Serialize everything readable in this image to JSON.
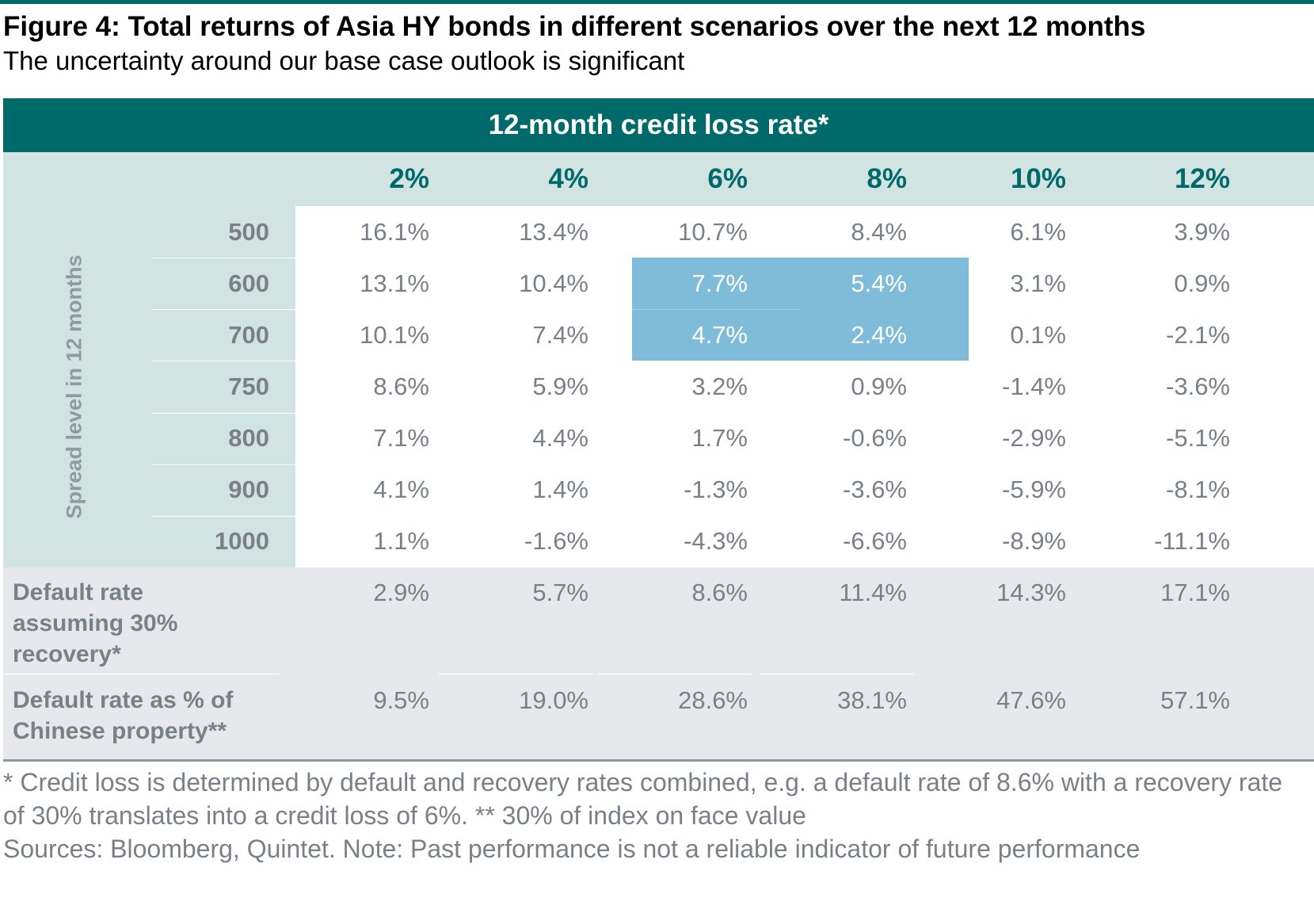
{
  "figure": {
    "title": "Figure 4: Total returns of Asia HY bonds in different scenarios over the next 12 months",
    "subtitle": "The uncertainty around our base case outlook is significant"
  },
  "chart_data": {
    "type": "table",
    "column_group_title": "12-month credit loss rate*",
    "row_axis_title": "Spread level in 12 months",
    "columns": [
      "2%",
      "4%",
      "6%",
      "8%",
      "10%",
      "12%"
    ],
    "rows": [
      {
        "label": "500",
        "values": [
          "16.1%",
          "13.4%",
          "10.7%",
          "8.4%",
          "6.1%",
          "3.9%"
        ]
      },
      {
        "label": "600",
        "values": [
          "13.1%",
          "10.4%",
          "7.7%",
          "5.4%",
          "3.1%",
          "0.9%"
        ]
      },
      {
        "label": "700",
        "values": [
          "10.1%",
          "7.4%",
          "4.7%",
          "2.4%",
          "0.1%",
          "-2.1%"
        ]
      },
      {
        "label": "750",
        "values": [
          "8.6%",
          "5.9%",
          "3.2%",
          "0.9%",
          "-1.4%",
          "-3.6%"
        ]
      },
      {
        "label": "800",
        "values": [
          "7.1%",
          "4.4%",
          "1.7%",
          "-0.6%",
          "-2.9%",
          "-5.1%"
        ]
      },
      {
        "label": "900",
        "values": [
          "4.1%",
          "1.4%",
          "-1.3%",
          "-3.6%",
          "-5.9%",
          "-8.1%"
        ]
      },
      {
        "label": "1000",
        "values": [
          "1.1%",
          "-1.6%",
          "-4.3%",
          "-6.6%",
          "-8.9%",
          "-11.1%"
        ]
      }
    ],
    "highlight": {
      "rows": [
        "600",
        "700"
      ],
      "columns": [
        "6%",
        "8%"
      ],
      "color": "#7fbcd9"
    },
    "footer_rows": [
      {
        "label": "Default rate assuming 30% recovery*",
        "values": [
          "2.9%",
          "5.7%",
          "8.6%",
          "11.4%",
          "14.3%",
          "17.1%"
        ]
      },
      {
        "label": "Default rate as % of Chinese property**",
        "values": [
          "9.5%",
          "19.0%",
          "28.6%",
          "38.1%",
          "47.6%",
          "57.1%"
        ]
      }
    ]
  },
  "notes": {
    "footnote": "* Credit loss is determined by default and recovery rates combined, e.g. a default rate of 8.6% with a recovery rate of 30% translates into a credit loss of 6%. ** 30% of index on face value",
    "sources": "Sources: Bloomberg, Quintet. Note: Past performance is not a reliable indicator of future performance"
  },
  "colors": {
    "accent": "#00696a",
    "header_band_light": "#d1e4e2",
    "footer_band": "#e6e8ec",
    "highlight": "#7fbcd9",
    "body_text": "#7a8088"
  }
}
